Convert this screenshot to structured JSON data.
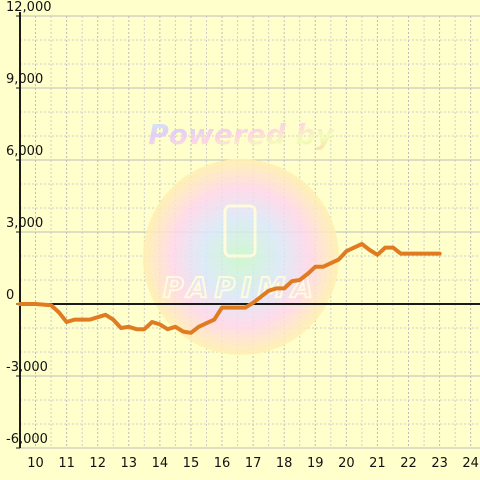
{
  "watermark": {
    "text_top": "Powered by",
    "text_bottom": "PAPIMA"
  },
  "colors": {
    "background": "#ffffcc",
    "grid_major": "#bdbdbd",
    "grid_minor": "#cfcfcf",
    "axis": "#1a1a1a",
    "series": "#e07b22"
  },
  "chart_data": {
    "type": "line",
    "title": "",
    "xlabel": "",
    "ylabel": "",
    "xlim": [
      9.5,
      24.3
    ],
    "ylim": [
      -6000,
      12000
    ],
    "x_ticks": [
      10,
      11,
      12,
      13,
      14,
      15,
      16,
      17,
      18,
      19,
      20,
      21,
      22,
      23,
      24
    ],
    "x_tick_labels": [
      "10",
      "11",
      "12",
      "13",
      "14",
      "15",
      "16",
      "17",
      "18",
      "19",
      "20",
      "21",
      "22",
      "23",
      "24"
    ],
    "y_ticks": [
      -6000,
      -3000,
      0,
      3000,
      6000,
      9000,
      12000
    ],
    "y_tick_labels": [
      "-6,000",
      "-3,000",
      "0",
      "3,000",
      "6,000",
      "9,000",
      "12,000"
    ],
    "grid": true,
    "legend": "none",
    "series": [
      {
        "x": [
          9.5,
          10.0,
          10.5,
          10.75,
          11.0,
          11.25,
          11.5,
          11.75,
          12.0,
          12.25,
          12.5,
          12.75,
          13.0,
          13.25,
          13.5,
          13.75,
          14.0,
          14.25,
          14.5,
          14.75,
          15.0,
          15.25,
          15.5,
          15.75,
          16.0,
          16.25,
          16.5,
          16.75,
          17.0,
          17.25,
          17.5,
          17.75,
          18.0,
          18.25,
          18.5,
          18.75,
          19.0,
          19.25,
          19.5,
          19.75,
          20.0,
          20.25,
          20.5,
          20.75,
          21.0,
          21.25,
          21.5,
          21.75,
          22.0,
          22.25,
          22.5,
          22.75,
          23.0
        ],
        "y": [
          0,
          0,
          -50,
          -350,
          -750,
          -650,
          -650,
          -650,
          -550,
          -450,
          -650,
          -1000,
          -950,
          -1050,
          -1050,
          -750,
          -850,
          -1050,
          -950,
          -1150,
          -1200,
          -950,
          -800,
          -650,
          -150,
          -150,
          -150,
          -150,
          50,
          300,
          550,
          650,
          650,
          950,
          1000,
          1250,
          1550,
          1550,
          1700,
          1850,
          2200,
          2350,
          2500,
          2250,
          2050,
          2350,
          2350,
          2100,
          2100,
          2100,
          2100,
          2100,
          2100
        ]
      }
    ]
  }
}
